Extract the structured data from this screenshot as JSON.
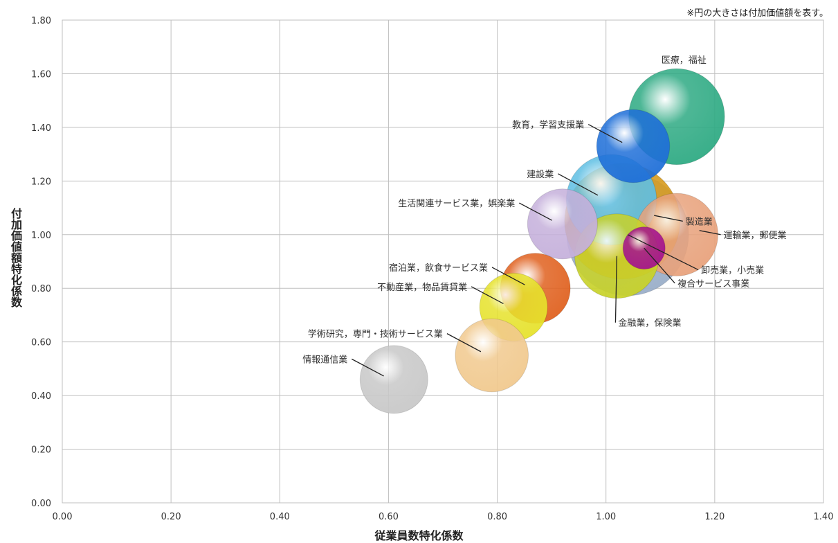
{
  "chart_data": {
    "type": "bubble",
    "note": "※円の大きさは付加価値額を表す。",
    "xlabel": "従業員数特化係数",
    "ylabel": "付加価値額特化係数",
    "xlim": [
      0,
      1.4
    ],
    "ylim": [
      0,
      1.8
    ],
    "xticks": [
      "0.00",
      "0.20",
      "0.40",
      "0.60",
      "0.80",
      "1.00",
      "1.20",
      "1.40"
    ],
    "yticks": [
      "0.00",
      "0.20",
      "0.40",
      "0.60",
      "0.80",
      "1.00",
      "1.20",
      "1.40",
      "1.60",
      "1.80"
    ],
    "grid": true,
    "points": [
      {
        "name": "卸売業，小売業",
        "x": 1.04,
        "y": 1.0,
        "size": 1.0,
        "color": "#9aaec9",
        "label_pos": "below-right"
      },
      {
        "name": "製造業",
        "x": 1.03,
        "y": 1.05,
        "size": 0.9,
        "color": "#d79a1c",
        "label_pos": "right"
      },
      {
        "name": "医療，福祉",
        "x": 1.13,
        "y": 1.44,
        "size": 0.62,
        "color": "#2eaa83",
        "label_pos": "above"
      },
      {
        "name": "建設業",
        "x": 1.01,
        "y": 1.13,
        "size": 0.55,
        "color": "#5fbfe3",
        "label_pos": "left"
      },
      {
        "name": "運輸業，郵便業",
        "x": 1.13,
        "y": 1.0,
        "size": 0.46,
        "color": "#e8a27c",
        "label_pos": "right"
      },
      {
        "name": "金融業，保険業",
        "x": 1.02,
        "y": 0.92,
        "size": 0.48,
        "color": "#c8d22a",
        "label_pos": "below"
      },
      {
        "name": "教育，学習支援業",
        "x": 1.05,
        "y": 1.33,
        "size": 0.36,
        "color": "#1f6fd8",
        "label_pos": "left"
      },
      {
        "name": "生活関連サービス業，娯楽業",
        "x": 0.92,
        "y": 1.04,
        "size": 0.33,
        "color": "#c5b0db",
        "label_pos": "left"
      },
      {
        "name": "宿泊業，飲食サービス業",
        "x": 0.87,
        "y": 0.8,
        "size": 0.33,
        "color": "#e0611f",
        "label_pos": "left"
      },
      {
        "name": "不動産業，物品賃貸業",
        "x": 0.83,
        "y": 0.73,
        "size": 0.31,
        "color": "#e6e22c",
        "label_pos": "left"
      },
      {
        "name": "学術研究，専門・技術サービス業",
        "x": 0.79,
        "y": 0.55,
        "size": 0.36,
        "color": "#f1c98e",
        "label_pos": "left"
      },
      {
        "name": "情報通信業",
        "x": 0.61,
        "y": 0.46,
        "size": 0.31,
        "color": "#c8c8c8",
        "label_pos": "left"
      },
      {
        "name": "複合サービス事業",
        "x": 1.07,
        "y": 0.95,
        "size": 0.12,
        "color": "#a4138e",
        "label_pos": "below-right"
      }
    ]
  }
}
